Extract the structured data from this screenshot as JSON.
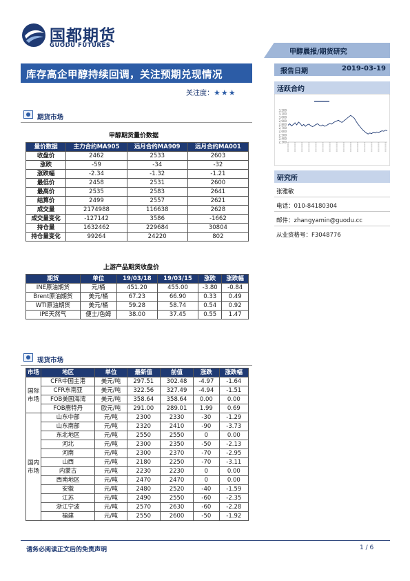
{
  "header": {
    "logo_cn": "国都期货",
    "logo_en": "GUODU FUTURES",
    "tag": "甲醇晨报/期货研究",
    "title": "库存高企甲醇持续回调，关注预期兑现情况",
    "attention_label": "关注度：",
    "attention_stars": "★★★",
    "date_label": "报告日期",
    "date_value": "2019-03-19"
  },
  "sidebar": {
    "active_contract_heading": "活跃合约",
    "research_heading": "研究所",
    "analyst": "张雅敏",
    "phone": "电话：010-84180304",
    "email": "邮件：zhangyamin@guodu.cc",
    "license": "从业资格号：F3048776"
  },
  "chart_data": {
    "type": "line",
    "title": "",
    "series": [
      {
        "name": "",
        "color": "#1f3a73",
        "values": [
          2780,
          2820,
          2760,
          2800,
          2850,
          2790,
          2870,
          2830,
          2760,
          2800,
          2750,
          2790,
          2810,
          2770,
          2740,
          2760,
          2800,
          2820,
          2780,
          2760,
          2790,
          2750,
          2770,
          2800,
          2830,
          2810,
          2850,
          2880,
          2900,
          2920,
          2880,
          2860,
          2900,
          2940,
          2980,
          3020,
          3060,
          3020,
          2980,
          2900,
          2820,
          2760,
          2700,
          2640,
          2600,
          2560,
          2530,
          2560,
          2540,
          2580,
          2560,
          2590,
          2570,
          2600,
          2620,
          2610,
          2640,
          2620
        ]
      }
    ],
    "ylim": [
      2300,
      3200
    ],
    "y_ticks": [
      "3,200",
      "3,100",
      "3,000",
      "2,900",
      "2,800",
      "2,700",
      "2,600",
      "2,500",
      "2,400",
      "2,300"
    ]
  },
  "futures_section": {
    "label": "期货市场",
    "table1_caption": "甲醇期货量价数据",
    "table1_headers": [
      "量价数据",
      "主力合约MA905",
      "远月合约MA909",
      "远月合约MA001"
    ],
    "table1_rows": [
      [
        "收盘价",
        "2462",
        "2533",
        "2603"
      ],
      [
        "涨跌",
        "-59",
        "-34",
        "-32"
      ],
      [
        "涨跌幅",
        "-2.34",
        "-1.32",
        "-1.21"
      ],
      [
        "最低价",
        "2458",
        "2531",
        "2600"
      ],
      [
        "最高价",
        "2535",
        "2583",
        "2641"
      ],
      [
        "结算价",
        "2499",
        "2557",
        "2621"
      ],
      [
        "成交量",
        "2174988",
        "116638",
        "2628"
      ],
      [
        "成交量变化",
        "-127142",
        "3586",
        "-1662"
      ],
      [
        "持仓量",
        "1632462",
        "229684",
        "30804"
      ],
      [
        "持仓量变化",
        "99264",
        "24220",
        "802"
      ]
    ],
    "table2_caption": "上游产品期货收盘价",
    "table2_headers": [
      "期货",
      "单位",
      "19/03/18",
      "19/03/15",
      "涨跌",
      "涨跌幅"
    ],
    "table2_rows": [
      [
        "INE原油期货",
        "元/桶",
        "451.20",
        "455.00",
        "-3.80",
        "-0.84"
      ],
      [
        "Brent原油期货",
        "美元/桶",
        "67.23",
        "66.90",
        "0.33",
        "0.49"
      ],
      [
        "WTI原油期货",
        "美元/桶",
        "59.28",
        "58.74",
        "0.54",
        "0.92"
      ],
      [
        "IPE天然气",
        "便士/色姆",
        "38.00",
        "37.45",
        "0.55",
        "1.47"
      ]
    ]
  },
  "spot_section": {
    "label": "现货市场",
    "headers": [
      "市场",
      "地区",
      "单位",
      "最新值",
      "前值",
      "涨跌",
      "涨跌幅"
    ],
    "intl_label": "国际市场",
    "intl_rows": [
      [
        "CFR中国主港",
        "美元/吨",
        "297.51",
        "302.48",
        "-4.97",
        "-1.64"
      ],
      [
        "CFR东南亚",
        "美元/吨",
        "322.56",
        "327.49",
        "-4.94",
        "-1.51"
      ],
      [
        "FOB美国海湾",
        "美元/吨",
        "358.64",
        "358.64",
        "0.00",
        "0.00"
      ],
      [
        "FOB鹿特丹",
        "欧元/吨",
        "291.00",
        "289.01",
        "1.99",
        "0.69"
      ]
    ],
    "dom_label": "国内市场",
    "dom_rows": [
      [
        "山东中部",
        "元/吨",
        "2300",
        "2330",
        "-30",
        "-1.29"
      ],
      [
        "山东南部",
        "元/吨",
        "2320",
        "2410",
        "-90",
        "-3.73"
      ],
      [
        "东北地区",
        "元/吨",
        "2550",
        "2550",
        "0",
        "0.00"
      ],
      [
        "河北",
        "元/吨",
        "2300",
        "2350",
        "-50",
        "-2.13"
      ],
      [
        "河南",
        "元/吨",
        "2300",
        "2370",
        "-70",
        "-2.95"
      ],
      [
        "山西",
        "元/吨",
        "2180",
        "2250",
        "-70",
        "-3.11"
      ],
      [
        "内蒙古",
        "元/吨",
        "2230",
        "2230",
        "0",
        "0.00"
      ],
      [
        "西南地区",
        "元/吨",
        "2470",
        "2470",
        "0",
        "0.00"
      ],
      [
        "安徽",
        "元/吨",
        "2480",
        "2520",
        "-40",
        "-1.59"
      ],
      [
        "江苏",
        "元/吨",
        "2490",
        "2550",
        "-60",
        "-2.35"
      ],
      [
        "浙江宁波",
        "元/吨",
        "2570",
        "2630",
        "-60",
        "-2.28"
      ],
      [
        "福建",
        "元/吨",
        "2550",
        "2600",
        "-50",
        "-1.92"
      ]
    ]
  },
  "footer": {
    "disclaimer": "请务必阅读正文后的免责声明",
    "page": "1 / 6"
  }
}
